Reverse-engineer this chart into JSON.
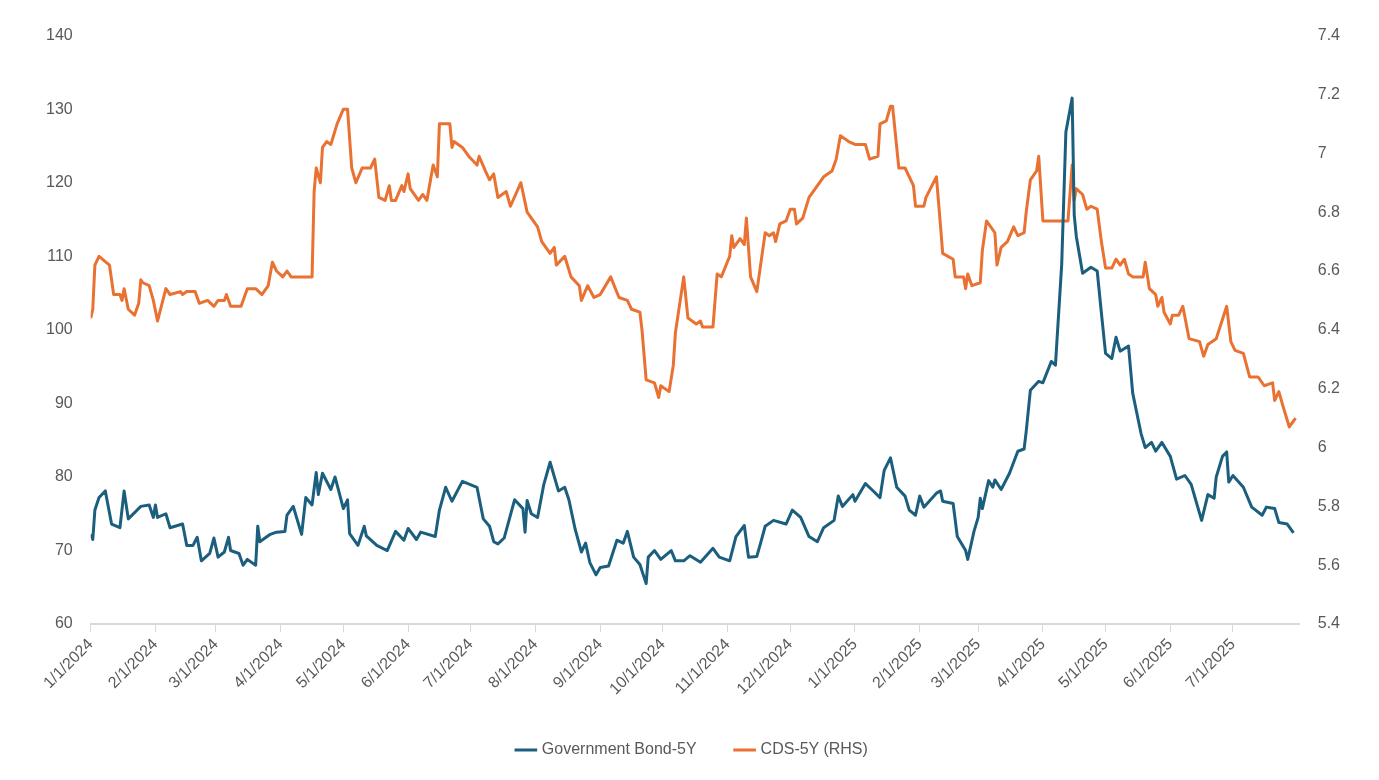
{
  "chart_data": {
    "type": "line",
    "xlim": [
      "2024-01-01",
      "2025-08-02"
    ],
    "xticks": [
      {
        "value": "2024-01-01",
        "label": "1/1/2024"
      },
      {
        "value": "2024-02-01",
        "label": "2/1/2024"
      },
      {
        "value": "2024-03-01",
        "label": "3/1/2024"
      },
      {
        "value": "2024-04-01",
        "label": "4/1/2024"
      },
      {
        "value": "2024-05-01",
        "label": "5/1/2024"
      },
      {
        "value": "2024-06-01",
        "label": "6/1/2024"
      },
      {
        "value": "2024-07-01",
        "label": "7/1/2024"
      },
      {
        "value": "2024-08-01",
        "label": "8/1/2024"
      },
      {
        "value": "2024-09-01",
        "label": "9/1/2024"
      },
      {
        "value": "2024-10-01",
        "label": "10/1/2024"
      },
      {
        "value": "2024-11-01",
        "label": "11/1/2024"
      },
      {
        "value": "2024-12-01",
        "label": "12/1/2024"
      },
      {
        "value": "2025-01-01",
        "label": "1/1/2025"
      },
      {
        "value": "2025-02-01",
        "label": "2/1/2025"
      },
      {
        "value": "2025-03-01",
        "label": "3/1/2025"
      },
      {
        "value": "2025-04-01",
        "label": "4/1/2025"
      },
      {
        "value": "2025-05-01",
        "label": "5/1/2025"
      },
      {
        "value": "2025-06-01",
        "label": "6/1/2025"
      },
      {
        "value": "2025-07-01",
        "label": "7/1/2025"
      }
    ],
    "ylim": [
      60,
      140
    ],
    "yticks": [
      60,
      70,
      80,
      90,
      100,
      110,
      120,
      130,
      140
    ],
    "y2lim": [
      5.4,
      7.4
    ],
    "y2ticks": [
      5.4,
      5.6,
      5.8,
      6,
      6.2,
      6.4,
      6.6,
      6.8,
      7,
      7.2,
      7.4
    ],
    "legend": "bottom",
    "marker": "none",
    "line_style": "solid",
    "series": [
      {
        "name": "Government Bond-5Y",
        "color": "#1b5e7e",
        "x": [
          "2024-01-01",
          "2024-01-02",
          "2024-01-03",
          "2024-01-05",
          "2024-01-08",
          "2024-01-11",
          "2024-01-15",
          "2024-01-17",
          "2024-01-19",
          "2024-01-25",
          "2024-01-29",
          "2024-01-31",
          "2024-02-01",
          "2024-02-02",
          "2024-02-06",
          "2024-02-08",
          "2024-02-14",
          "2024-02-16",
          "2024-02-19",
          "2024-02-21",
          "2024-02-23",
          "2024-02-27",
          "2024-02-29",
          "2024-03-02",
          "2024-03-05",
          "2024-03-07",
          "2024-03-08",
          "2024-03-12",
          "2024-03-14",
          "2024-03-16",
          "2024-03-20",
          "2024-03-21",
          "2024-03-22",
          "2024-03-27",
          "2024-03-30",
          "2024-04-03",
          "2024-04-04",
          "2024-04-07",
          "2024-04-11",
          "2024-04-13",
          "2024-04-16",
          "2024-04-18",
          "2024-04-19",
          "2024-04-21",
          "2024-04-25",
          "2024-04-27",
          "2024-05-01",
          "2024-05-03",
          "2024-05-04",
          "2024-05-08",
          "2024-05-11",
          "2024-05-12",
          "2024-05-17",
          "2024-05-22",
          "2024-05-26",
          "2024-05-30",
          "2024-06-01",
          "2024-06-05",
          "2024-06-07",
          "2024-06-14",
          "2024-06-16",
          "2024-06-19",
          "2024-06-22",
          "2024-06-27",
          "2024-07-04",
          "2024-07-07",
          "2024-07-10",
          "2024-07-12",
          "2024-07-14",
          "2024-07-17",
          "2024-07-22",
          "2024-07-26",
          "2024-07-27",
          "2024-07-28",
          "2024-07-30",
          "2024-08-02",
          "2024-08-05",
          "2024-08-08",
          "2024-08-12",
          "2024-08-15",
          "2024-08-17",
          "2024-08-20",
          "2024-08-23",
          "2024-08-25",
          "2024-08-27",
          "2024-08-30",
          "2024-09-01",
          "2024-09-05",
          "2024-09-09",
          "2024-09-12",
          "2024-09-14",
          "2024-09-17",
          "2024-09-20",
          "2024-09-23",
          "2024-09-24",
          "2024-09-27",
          "2024-09-30",
          "2024-10-05",
          "2024-10-07",
          "2024-10-11",
          "2024-10-14",
          "2024-10-19",
          "2024-10-25",
          "2024-10-28",
          "2024-11-02",
          "2024-11-05",
          "2024-11-09",
          "2024-11-11",
          "2024-11-15",
          "2024-11-17",
          "2024-11-19",
          "2024-11-23",
          "2024-11-29",
          "2024-12-02",
          "2024-12-06",
          "2024-12-10",
          "2024-12-14",
          "2024-12-17",
          "2024-12-22",
          "2024-12-24",
          "2024-12-26",
          "2024-12-31",
          "2025-01-01",
          "2025-01-06",
          "2025-01-09",
          "2025-01-13",
          "2025-01-15",
          "2025-01-18",
          "2025-01-21",
          "2025-01-25",
          "2025-01-27",
          "2025-01-30",
          "2025-02-01",
          "2025-02-03",
          "2025-02-09",
          "2025-02-11",
          "2025-02-12",
          "2025-02-17",
          "2025-02-19",
          "2025-02-23",
          "2025-02-24",
          "2025-02-27",
          "2025-03-01",
          "2025-03-02",
          "2025-03-03",
          "2025-03-06",
          "2025-03-08",
          "2025-03-09",
          "2025-03-12",
          "2025-03-16",
          "2025-03-20",
          "2025-03-23",
          "2025-03-24",
          "2025-03-26",
          "2025-03-30",
          "2025-04-01",
          "2025-04-05",
          "2025-04-07",
          "2025-04-10",
          "2025-04-12",
          "2025-04-15",
          "2025-04-16",
          "2025-04-17",
          "2025-04-20",
          "2025-04-24",
          "2025-04-27",
          "2025-04-29",
          "2025-05-01",
          "2025-05-04",
          "2025-05-06",
          "2025-05-08",
          "2025-05-12",
          "2025-05-14",
          "2025-05-18",
          "2025-05-20",
          "2025-05-23",
          "2025-05-25",
          "2025-05-28",
          "2025-06-01",
          "2025-06-04",
          "2025-06-08",
          "2025-06-11",
          "2025-06-16",
          "2025-06-19",
          "2025-06-22",
          "2025-06-23",
          "2025-06-26",
          "2025-06-28",
          "2025-06-29",
          "2025-07-01",
          "2025-07-06",
          "2025-07-10",
          "2025-07-15",
          "2025-07-17",
          "2025-07-21",
          "2025-07-23",
          "2025-07-27",
          "2025-07-30"
        ],
        "values": [
          72.2,
          71.5,
          75.5,
          77.2,
          78.1,
          73.6,
          73.1,
          78.1,
          74.3,
          76.0,
          76.2,
          74.5,
          76.2,
          74.5,
          75.0,
          73.1,
          73.6,
          70.7,
          70.7,
          71.8,
          68.6,
          69.6,
          71.7,
          69.1,
          69.8,
          71.8,
          70.0,
          69.6,
          68.0,
          68.8,
          68.0,
          73.3,
          71.2,
          72.2,
          72.5,
          72.6,
          74.8,
          76.0,
          72.2,
          77.2,
          76.2,
          80.6,
          77.6,
          80.5,
          78.3,
          80.0,
          75.7,
          76.9,
          72.3,
          70.7,
          73.3,
          72.0,
          70.7,
          70.0,
          72.6,
          71.4,
          73.0,
          71.5,
          72.5,
          71.9,
          75.5,
          78.6,
          76.7,
          79.4,
          78.6,
          74.3,
          73.3,
          71.2,
          70.9,
          71.7,
          76.9,
          75.7,
          72.5,
          76.8,
          75.0,
          74.5,
          79.0,
          82.0,
          78.1,
          78.6,
          76.9,
          72.9,
          69.8,
          71.0,
          68.4,
          66.7,
          67.7,
          67.9,
          71.4,
          71.0,
          72.6,
          69.1,
          68.1,
          65.5,
          69.1,
          70.0,
          68.8,
          70.0,
          68.6,
          68.6,
          69.3,
          68.4,
          70.3,
          69.1,
          68.6,
          71.9,
          73.4,
          69.1,
          69.2,
          71.2,
          73.3,
          74.1,
          73.6,
          75.5,
          74.5,
          71.9,
          71.2,
          73.1,
          74.1,
          77.4,
          76.0,
          77.6,
          76.7,
          79.1,
          78.3,
          77.2,
          80.9,
          82.6,
          78.6,
          77.4,
          75.5,
          74.8,
          77.4,
          75.9,
          77.8,
          78.1,
          76.7,
          76.4,
          71.9,
          70.0,
          68.8,
          72.6,
          74.5,
          77.1,
          75.7,
          79.5,
          78.6,
          79.6,
          78.3,
          80.5,
          83.5,
          83.8,
          86.2,
          91.8,
          93.0,
          92.8,
          95.7,
          95.2,
          108.9,
          126.9,
          131.5,
          115.6,
          112.7,
          107.7,
          108.5,
          108.0,
          102.3,
          96.8,
          96.1,
          99.0,
          97.1,
          97.8,
          91.4,
          85.9,
          84.0,
          84.7,
          83.5,
          84.7,
          82.8,
          79.7,
          80.2,
          79.0,
          74.1,
          77.6,
          77.1,
          80.0,
          82.8,
          83.4,
          79.3,
          80.2,
          78.6,
          75.9,
          74.8,
          75.9,
          75.7,
          73.8,
          73.6,
          72.4
        ]
      },
      {
        "name": "CDS-5Y (RHS)",
        "color": "#e97132",
        "axis": "y2",
        "x": [
          "2024-01-01",
          "2024-01-02",
          "2024-01-03",
          "2024-01-05",
          "2024-01-10",
          "2024-01-12",
          "2024-01-15",
          "2024-01-16",
          "2024-01-17",
          "2024-01-19",
          "2024-01-22",
          "2024-01-24",
          "2024-01-25",
          "2024-01-26",
          "2024-01-29",
          "2024-01-31",
          "2024-02-02",
          "2024-02-06",
          "2024-02-08",
          "2024-02-13",
          "2024-02-14",
          "2024-02-16",
          "2024-02-20",
          "2024-02-22",
          "2024-02-26",
          "2024-02-29",
          "2024-03-02",
          "2024-03-05",
          "2024-03-06",
          "2024-03-08",
          "2024-03-13",
          "2024-03-16",
          "2024-03-20",
          "2024-03-23",
          "2024-03-26",
          "2024-03-28",
          "2024-03-30",
          "2024-04-02",
          "2024-04-04",
          "2024-04-06",
          "2024-04-16",
          "2024-04-17",
          "2024-04-18",
          "2024-04-20",
          "2024-04-21",
          "2024-04-23",
          "2024-04-25",
          "2024-04-28",
          "2024-05-01",
          "2024-05-03",
          "2024-05-05",
          "2024-05-07",
          "2024-05-10",
          "2024-05-14",
          "2024-05-16",
          "2024-05-18",
          "2024-05-21",
          "2024-05-23",
          "2024-05-24",
          "2024-05-26",
          "2024-05-29",
          "2024-05-30",
          "2024-06-01",
          "2024-06-02",
          "2024-06-06",
          "2024-06-08",
          "2024-06-10",
          "2024-06-13",
          "2024-06-15",
          "2024-06-16",
          "2024-06-21",
          "2024-06-22",
          "2024-06-23",
          "2024-06-27",
          "2024-06-30",
          "2024-07-04",
          "2024-07-05",
          "2024-07-08",
          "2024-07-10",
          "2024-07-12",
          "2024-07-14",
          "2024-07-18",
          "2024-07-20",
          "2024-07-25",
          "2024-07-28",
          "2024-08-02",
          "2024-08-04",
          "2024-08-08",
          "2024-08-10",
          "2024-08-11",
          "2024-08-15",
          "2024-08-18",
          "2024-08-22",
          "2024-08-23",
          "2024-08-26",
          "2024-08-29",
          "2024-09-01",
          "2024-09-06",
          "2024-09-10",
          "2024-09-14",
          "2024-09-16",
          "2024-09-20",
          "2024-09-21",
          "2024-09-23",
          "2024-09-27",
          "2024-09-29",
          "2024-09-30",
          "2024-10-04",
          "2024-10-06",
          "2024-10-07",
          "2024-10-11",
          "2024-10-13",
          "2024-10-17",
          "2024-10-19",
          "2024-10-20",
          "2024-10-25",
          "2024-10-27",
          "2024-10-29",
          "2024-11-02",
          "2024-11-03",
          "2024-11-04",
          "2024-11-07",
          "2024-11-09",
          "2024-11-10",
          "2024-11-12",
          "2024-11-15",
          "2024-11-19",
          "2024-11-21",
          "2024-11-23",
          "2024-11-24",
          "2024-11-26",
          "2024-11-29",
          "2024-12-01",
          "2024-12-03",
          "2024-12-04",
          "2024-12-07",
          "2024-12-10",
          "2024-12-13",
          "2024-12-17",
          "2024-12-21",
          "2024-12-23",
          "2024-12-25",
          "2024-12-29",
          "2025-01-01",
          "2025-01-06",
          "2025-01-08",
          "2025-01-12",
          "2025-01-13",
          "2025-01-16",
          "2025-01-18",
          "2025-01-19",
          "2025-01-22",
          "2025-01-25",
          "2025-01-29",
          "2025-01-30",
          "2025-02-03",
          "2025-02-04",
          "2025-02-09",
          "2025-02-11",
          "2025-02-12",
          "2025-02-17",
          "2025-02-18",
          "2025-02-22",
          "2025-02-23",
          "2025-02-24",
          "2025-02-26",
          "2025-03-02",
          "2025-03-03",
          "2025-03-05",
          "2025-03-09",
          "2025-03-10",
          "2025-03-12",
          "2025-03-15",
          "2025-03-18",
          "2025-03-20",
          "2025-03-23",
          "2025-03-24",
          "2025-03-26",
          "2025-03-29",
          "2025-03-30",
          "2025-04-01",
          "2025-04-13",
          "2025-04-15",
          "2025-04-16",
          "2025-04-17",
          "2025-04-20",
          "2025-04-22",
          "2025-04-24",
          "2025-04-27",
          "2025-04-29",
          "2025-05-01",
          "2025-05-04",
          "2025-05-06",
          "2025-05-08",
          "2025-05-10",
          "2025-05-12",
          "2025-05-14",
          "2025-05-19",
          "2025-05-20",
          "2025-05-22",
          "2025-05-25",
          "2025-05-26",
          "2025-05-28",
          "2025-05-29",
          "2025-06-01",
          "2025-06-02",
          "2025-06-05",
          "2025-06-07",
          "2025-06-10",
          "2025-06-15",
          "2025-06-17",
          "2025-06-19",
          "2025-06-23",
          "2025-06-28",
          "2025-06-30",
          "2025-07-02",
          "2025-07-06",
          "2025-07-09",
          "2025-07-13",
          "2025-07-16",
          "2025-07-20",
          "2025-07-21",
          "2025-07-23",
          "2025-07-25",
          "2025-07-28",
          "2025-07-31"
        ],
        "values": [
          6.44,
          6.47,
          6.62,
          6.65,
          6.62,
          6.52,
          6.52,
          6.5,
          6.54,
          6.47,
          6.45,
          6.49,
          6.57,
          6.56,
          6.55,
          6.5,
          6.43,
          6.54,
          6.52,
          6.53,
          6.52,
          6.53,
          6.53,
          6.49,
          6.5,
          6.48,
          6.5,
          6.5,
          6.52,
          6.48,
          6.48,
          6.54,
          6.54,
          6.52,
          6.55,
          6.63,
          6.6,
          6.58,
          6.6,
          6.58,
          6.58,
          6.87,
          6.95,
          6.9,
          7.02,
          7.04,
          7.03,
          7.1,
          7.15,
          7.15,
          6.95,
          6.9,
          6.95,
          6.95,
          6.98,
          6.85,
          6.84,
          6.89,
          6.84,
          6.84,
          6.89,
          6.87,
          6.93,
          6.88,
          6.84,
          6.86,
          6.84,
          6.96,
          6.92,
          7.1,
          7.1,
          7.02,
          7.04,
          7.02,
          6.99,
          6.96,
          6.99,
          6.94,
          6.91,
          6.93,
          6.85,
          6.87,
          6.82,
          6.9,
          6.8,
          6.75,
          6.7,
          6.66,
          6.68,
          6.62,
          6.65,
          6.58,
          6.55,
          6.5,
          6.55,
          6.51,
          6.52,
          6.58,
          6.51,
          6.5,
          6.47,
          6.46,
          6.4,
          6.23,
          6.22,
          6.17,
          6.21,
          6.19,
          6.28,
          6.39,
          6.58,
          6.44,
          6.42,
          6.43,
          6.41,
          6.41,
          6.59,
          6.58,
          6.65,
          6.72,
          6.68,
          6.71,
          6.69,
          6.78,
          6.58,
          6.53,
          6.73,
          6.72,
          6.73,
          6.7,
          6.76,
          6.77,
          6.81,
          6.81,
          6.76,
          6.78,
          6.85,
          6.88,
          6.92,
          6.94,
          6.98,
          7.06,
          7.04,
          7.03,
          7.03,
          6.98,
          6.99,
          7.1,
          7.11,
          7.16,
          7.16,
          6.95,
          6.95,
          6.89,
          6.82,
          6.82,
          6.85,
          6.92,
          6.75,
          6.66,
          6.64,
          6.58,
          6.58,
          6.54,
          6.59,
          6.55,
          6.56,
          6.67,
          6.77,
          6.73,
          6.62,
          6.68,
          6.7,
          6.75,
          6.72,
          6.73,
          6.8,
          6.91,
          6.94,
          6.99,
          6.77,
          6.77,
          6.96,
          6.84,
          6.88,
          6.86,
          6.81,
          6.82,
          6.81,
          6.7,
          6.61,
          6.61,
          6.64,
          6.62,
          6.64,
          6.59,
          6.58,
          6.58,
          6.63,
          6.54,
          6.52,
          6.48,
          6.51,
          6.46,
          6.42,
          6.45,
          6.45,
          6.48,
          6.37,
          6.36,
          6.31,
          6.35,
          6.37,
          6.48,
          6.36,
          6.33,
          6.32,
          6.24,
          6.24,
          6.21,
          6.22,
          6.16,
          6.19,
          6.14,
          6.07,
          6.1
        ]
      }
    ]
  }
}
